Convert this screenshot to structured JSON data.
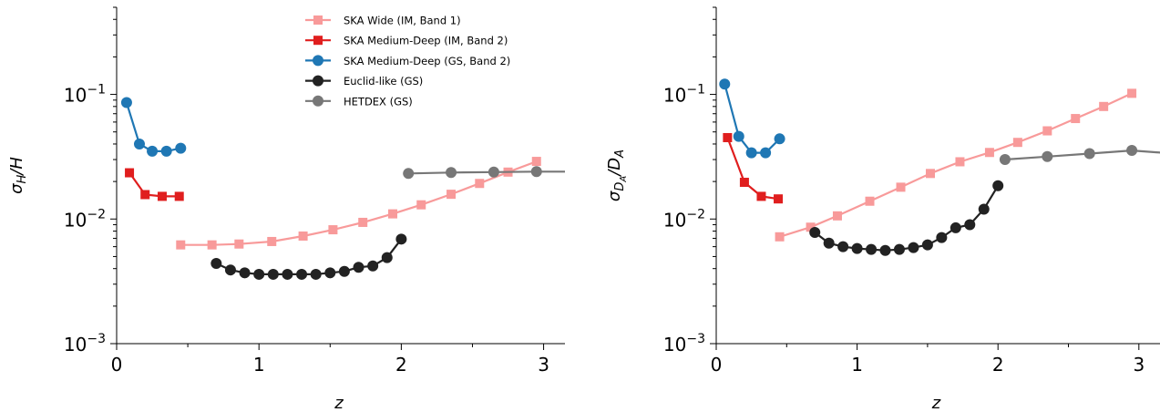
{
  "chart_data": [
    {
      "type": "line",
      "ylabel": "σH/H",
      "ylabel_main": "σ",
      "ylabel_sub": "H",
      "ylabel_tail": "/H",
      "xlabel": "z",
      "xlim": [
        0,
        3.15
      ],
      "ylim": [
        0.001,
        0.5
      ],
      "yscale": "log",
      "xticks": [
        0,
        1,
        2,
        3
      ],
      "xtick_labels": [
        "0",
        "1",
        "2",
        "3"
      ],
      "yticks": [
        {
          "value": 0.1,
          "base": "10",
          "exp": "−1"
        },
        {
          "value": 0.01,
          "base": "10",
          "exp": "−2"
        },
        {
          "value": 0.001,
          "base": "10",
          "exp": "−3"
        }
      ],
      "legend": "top-center",
      "series": [
        {
          "name": "SKA Wide (IM, Band 1)",
          "color": "#f89a9a",
          "marker": "square",
          "x": [
            0.45,
            0.67,
            0.86,
            1.09,
            1.31,
            1.52,
            1.73,
            1.94,
            2.14,
            2.35,
            2.55,
            2.75,
            2.95
          ],
          "y": [
            0.0062,
            0.0062,
            0.0063,
            0.0066,
            0.0073,
            0.0082,
            0.0094,
            0.011,
            0.013,
            0.0158,
            0.0193,
            0.0238,
            0.029
          ]
        },
        {
          "name": "SKA Medium-Deep (IM, Band 2)",
          "color": "#e01e1e",
          "marker": "square",
          "x": [
            0.09,
            0.2,
            0.32,
            0.44
          ],
          "y": [
            0.0235,
            0.0157,
            0.0152,
            0.0152
          ]
        },
        {
          "name": "SKA Medium-Deep (GS, Band 2)",
          "color": "#1f77b4",
          "marker": "circle",
          "x": [
            0.07,
            0.16,
            0.25,
            0.35,
            0.45
          ],
          "y": [
            0.086,
            0.04,
            0.035,
            0.035,
            0.037
          ]
        },
        {
          "name": "Euclid-like (GS)",
          "color": "#222222",
          "marker": "circle",
          "x": [
            0.7,
            0.8,
            0.9,
            1.0,
            1.1,
            1.2,
            1.3,
            1.4,
            1.5,
            1.6,
            1.7,
            1.8,
            1.9,
            2.0
          ],
          "y": [
            0.0044,
            0.0039,
            0.0037,
            0.0036,
            0.0036,
            0.0036,
            0.0036,
            0.0036,
            0.0037,
            0.0038,
            0.0041,
            0.0042,
            0.0049,
            0.0069
          ]
        },
        {
          "name": "HETDEX (GS)",
          "color": "#777777",
          "marker": "circle",
          "x": [
            2.05,
            2.35,
            2.65,
            2.95,
            3.25
          ],
          "y": [
            0.0232,
            0.0236,
            0.0238,
            0.024,
            0.024
          ]
        }
      ]
    },
    {
      "type": "line",
      "ylabel": "σDA/DA",
      "ylabel_main": "σ",
      "ylabel_sub": "DA",
      "ylabel_tail": "/DA",
      "xlabel": "z",
      "xlim": [
        0,
        3.15
      ],
      "ylim": [
        0.001,
        0.5
      ],
      "yscale": "log",
      "xticks": [
        0,
        1,
        2,
        3
      ],
      "xtick_labels": [
        "0",
        "1",
        "2",
        "3"
      ],
      "yticks": [
        {
          "value": 0.1,
          "base": "10",
          "exp": "−1"
        },
        {
          "value": 0.01,
          "base": "10",
          "exp": "−2"
        },
        {
          "value": 0.001,
          "base": "10",
          "exp": "−3"
        }
      ],
      "series": [
        {
          "name": "SKA Wide (IM, Band 1)",
          "color": "#f89a9a",
          "marker": "square",
          "x": [
            0.45,
            0.67,
            0.86,
            1.09,
            1.31,
            1.52,
            1.73,
            1.94,
            2.14,
            2.35,
            2.55,
            2.75,
            2.95
          ],
          "y": [
            0.0072,
            0.0086,
            0.0106,
            0.0139,
            0.018,
            0.0232,
            0.0288,
            0.0342,
            0.0412,
            0.051,
            0.064,
            0.08,
            0.102
          ]
        },
        {
          "name": "SKA Medium-Deep (IM, Band 2)",
          "color": "#e01e1e",
          "marker": "square",
          "x": [
            0.08,
            0.2,
            0.32,
            0.44
          ],
          "y": [
            0.045,
            0.0197,
            0.0152,
            0.0145
          ]
        },
        {
          "name": "SKA Medium-Deep (GS, Band 2)",
          "color": "#1f77b4",
          "marker": "circle",
          "x": [
            0.06,
            0.16,
            0.25,
            0.35,
            0.45
          ],
          "y": [
            0.121,
            0.046,
            0.034,
            0.034,
            0.044
          ]
        },
        {
          "name": "Euclid-like (GS)",
          "color": "#222222",
          "marker": "circle",
          "x": [
            0.7,
            0.8,
            0.9,
            1.0,
            1.1,
            1.2,
            1.3,
            1.4,
            1.5,
            1.6,
            1.7,
            1.8,
            1.9,
            2.0
          ],
          "y": [
            0.0078,
            0.0064,
            0.006,
            0.0058,
            0.0057,
            0.0056,
            0.0057,
            0.0059,
            0.0062,
            0.0071,
            0.0085,
            0.009,
            0.012,
            0.0185
          ]
        },
        {
          "name": "HETDEX (GS)",
          "color": "#777777",
          "marker": "circle",
          "x": [
            2.05,
            2.35,
            2.65,
            2.95,
            3.25
          ],
          "y": [
            0.03,
            0.0317,
            0.0335,
            0.0355,
            0.0335
          ]
        }
      ]
    }
  ]
}
